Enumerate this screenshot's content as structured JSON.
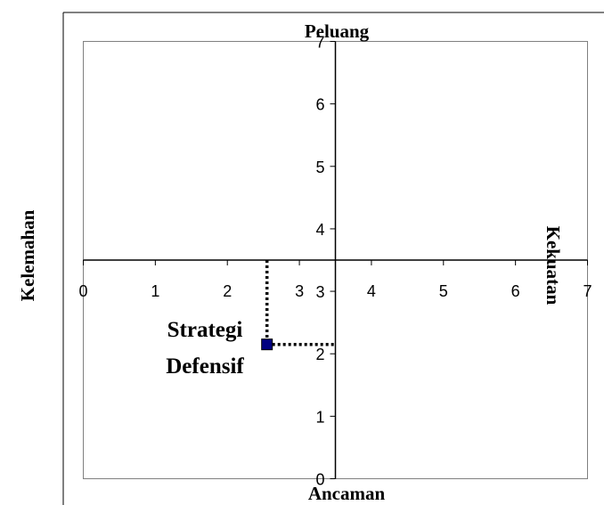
{
  "chart_data": {
    "type": "scatter",
    "title": "",
    "xlim": [
      0,
      7
    ],
    "ylim": [
      0,
      7
    ],
    "x_ticks": [
      "0",
      "1",
      "2",
      "3",
      "4",
      "5",
      "6",
      "7"
    ],
    "y_ticks": [
      "0",
      "1",
      "2",
      "3",
      "4",
      "5",
      "6",
      "7"
    ],
    "x_axis_crosses_y_at": 3.5,
    "y_axis_crosses_x_at": 3.5,
    "grid": false,
    "quadrant_labels": {
      "top": "Peluang",
      "bottom": "Ancaman",
      "left": "Kelemahan",
      "right": "Kekuatan"
    },
    "points": [
      {
        "x": 2.55,
        "y": 2.15,
        "color": "#000080"
      }
    ],
    "guide_lines": true,
    "annotation": [
      "Strategi",
      "Defensif"
    ]
  }
}
